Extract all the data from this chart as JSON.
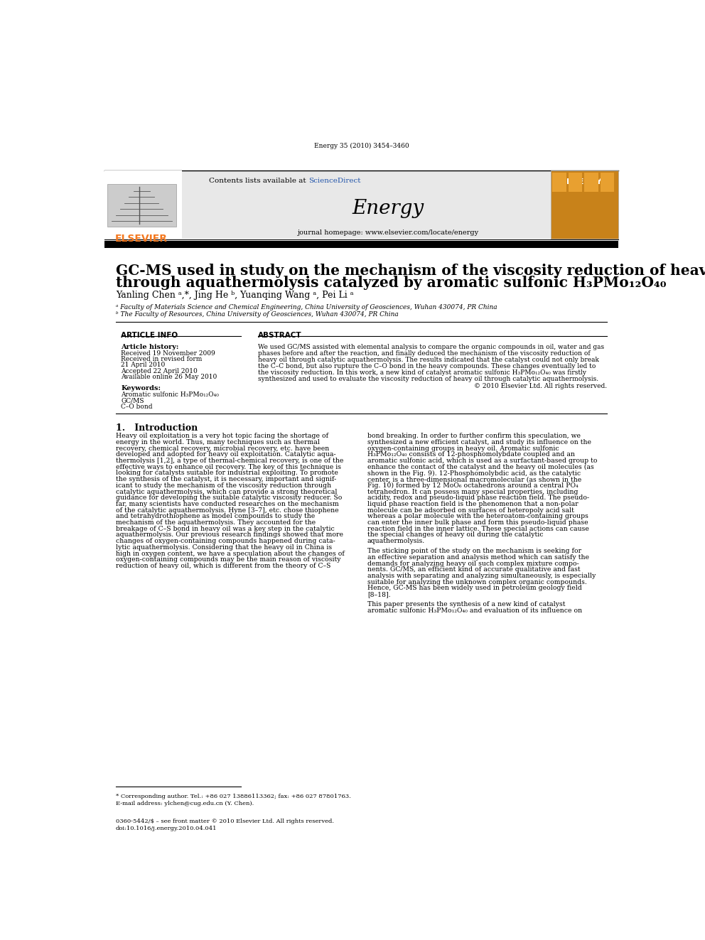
{
  "journal_citation": "Energy 35 (2010) 3454–3460",
  "contents_text": "Contents lists available at ",
  "sciencedirect_text": "ScienceDirect",
  "journal_name": "Energy",
  "journal_homepage": "journal homepage: www.elsevier.com/locate/energy",
  "elsevier_text": "ELSEVIER",
  "title_line1": "GC-MS used in study on the mechanism of the viscosity reduction of heavy oil",
  "title_line2": "through aquathermolysis catalyzed by aromatic sulfonic H₃PMo₁₂O₄₀",
  "authors": "Yanling Chen ᵃ,*, Jing He ᵇ, Yuanqing Wang ᵃ, Pei Li ᵃ",
  "affil_a": "ᵃ Faculty of Materials Science and Chemical Engineering, China University of Geosciences, Wuhan 430074, PR China",
  "affil_b": "ᵇ The Faculty of Resources, China University of Geosciences, Wuhan 430074, PR China",
  "article_info_title": "ARTICLE INFO",
  "abstract_title": "ABSTRACT",
  "article_history_title": "Article history:",
  "received_1": "Received 19 November 2009",
  "received_2": "Received in revised form",
  "received_3": "21 April 2010",
  "accepted": "Accepted 22 April 2010",
  "available": "Available online 26 May 2010",
  "keywords_title": "Keywords:",
  "keyword1": "Aromatic sulfonic H₃PMo₁₂O₄₀",
  "keyword2": "GC/MS",
  "keyword3": "C–O bond",
  "copyright": "© 2010 Elsevier Ltd. All rights reserved.",
  "intro_title": "1.   Introduction",
  "footnote_star": "* Corresponding author. Tel.: +86 027 13886113362; fax: +86 027 87801763.",
  "footnote_email": "E-mail address: ylchen@cug.edu.cn (Y. Chen).",
  "footer_issn": "0360-5442/$ – see front matter © 2010 Elsevier Ltd. All rights reserved.",
  "footer_doi": "doi:10.1016/j.energy.2010.04.041",
  "bg_color": "#ffffff",
  "header_bg": "#e8e8e8",
  "elsevier_orange": "#f47920",
  "sciencedirect_blue": "#2255aa",
  "black_bar": "#000000"
}
